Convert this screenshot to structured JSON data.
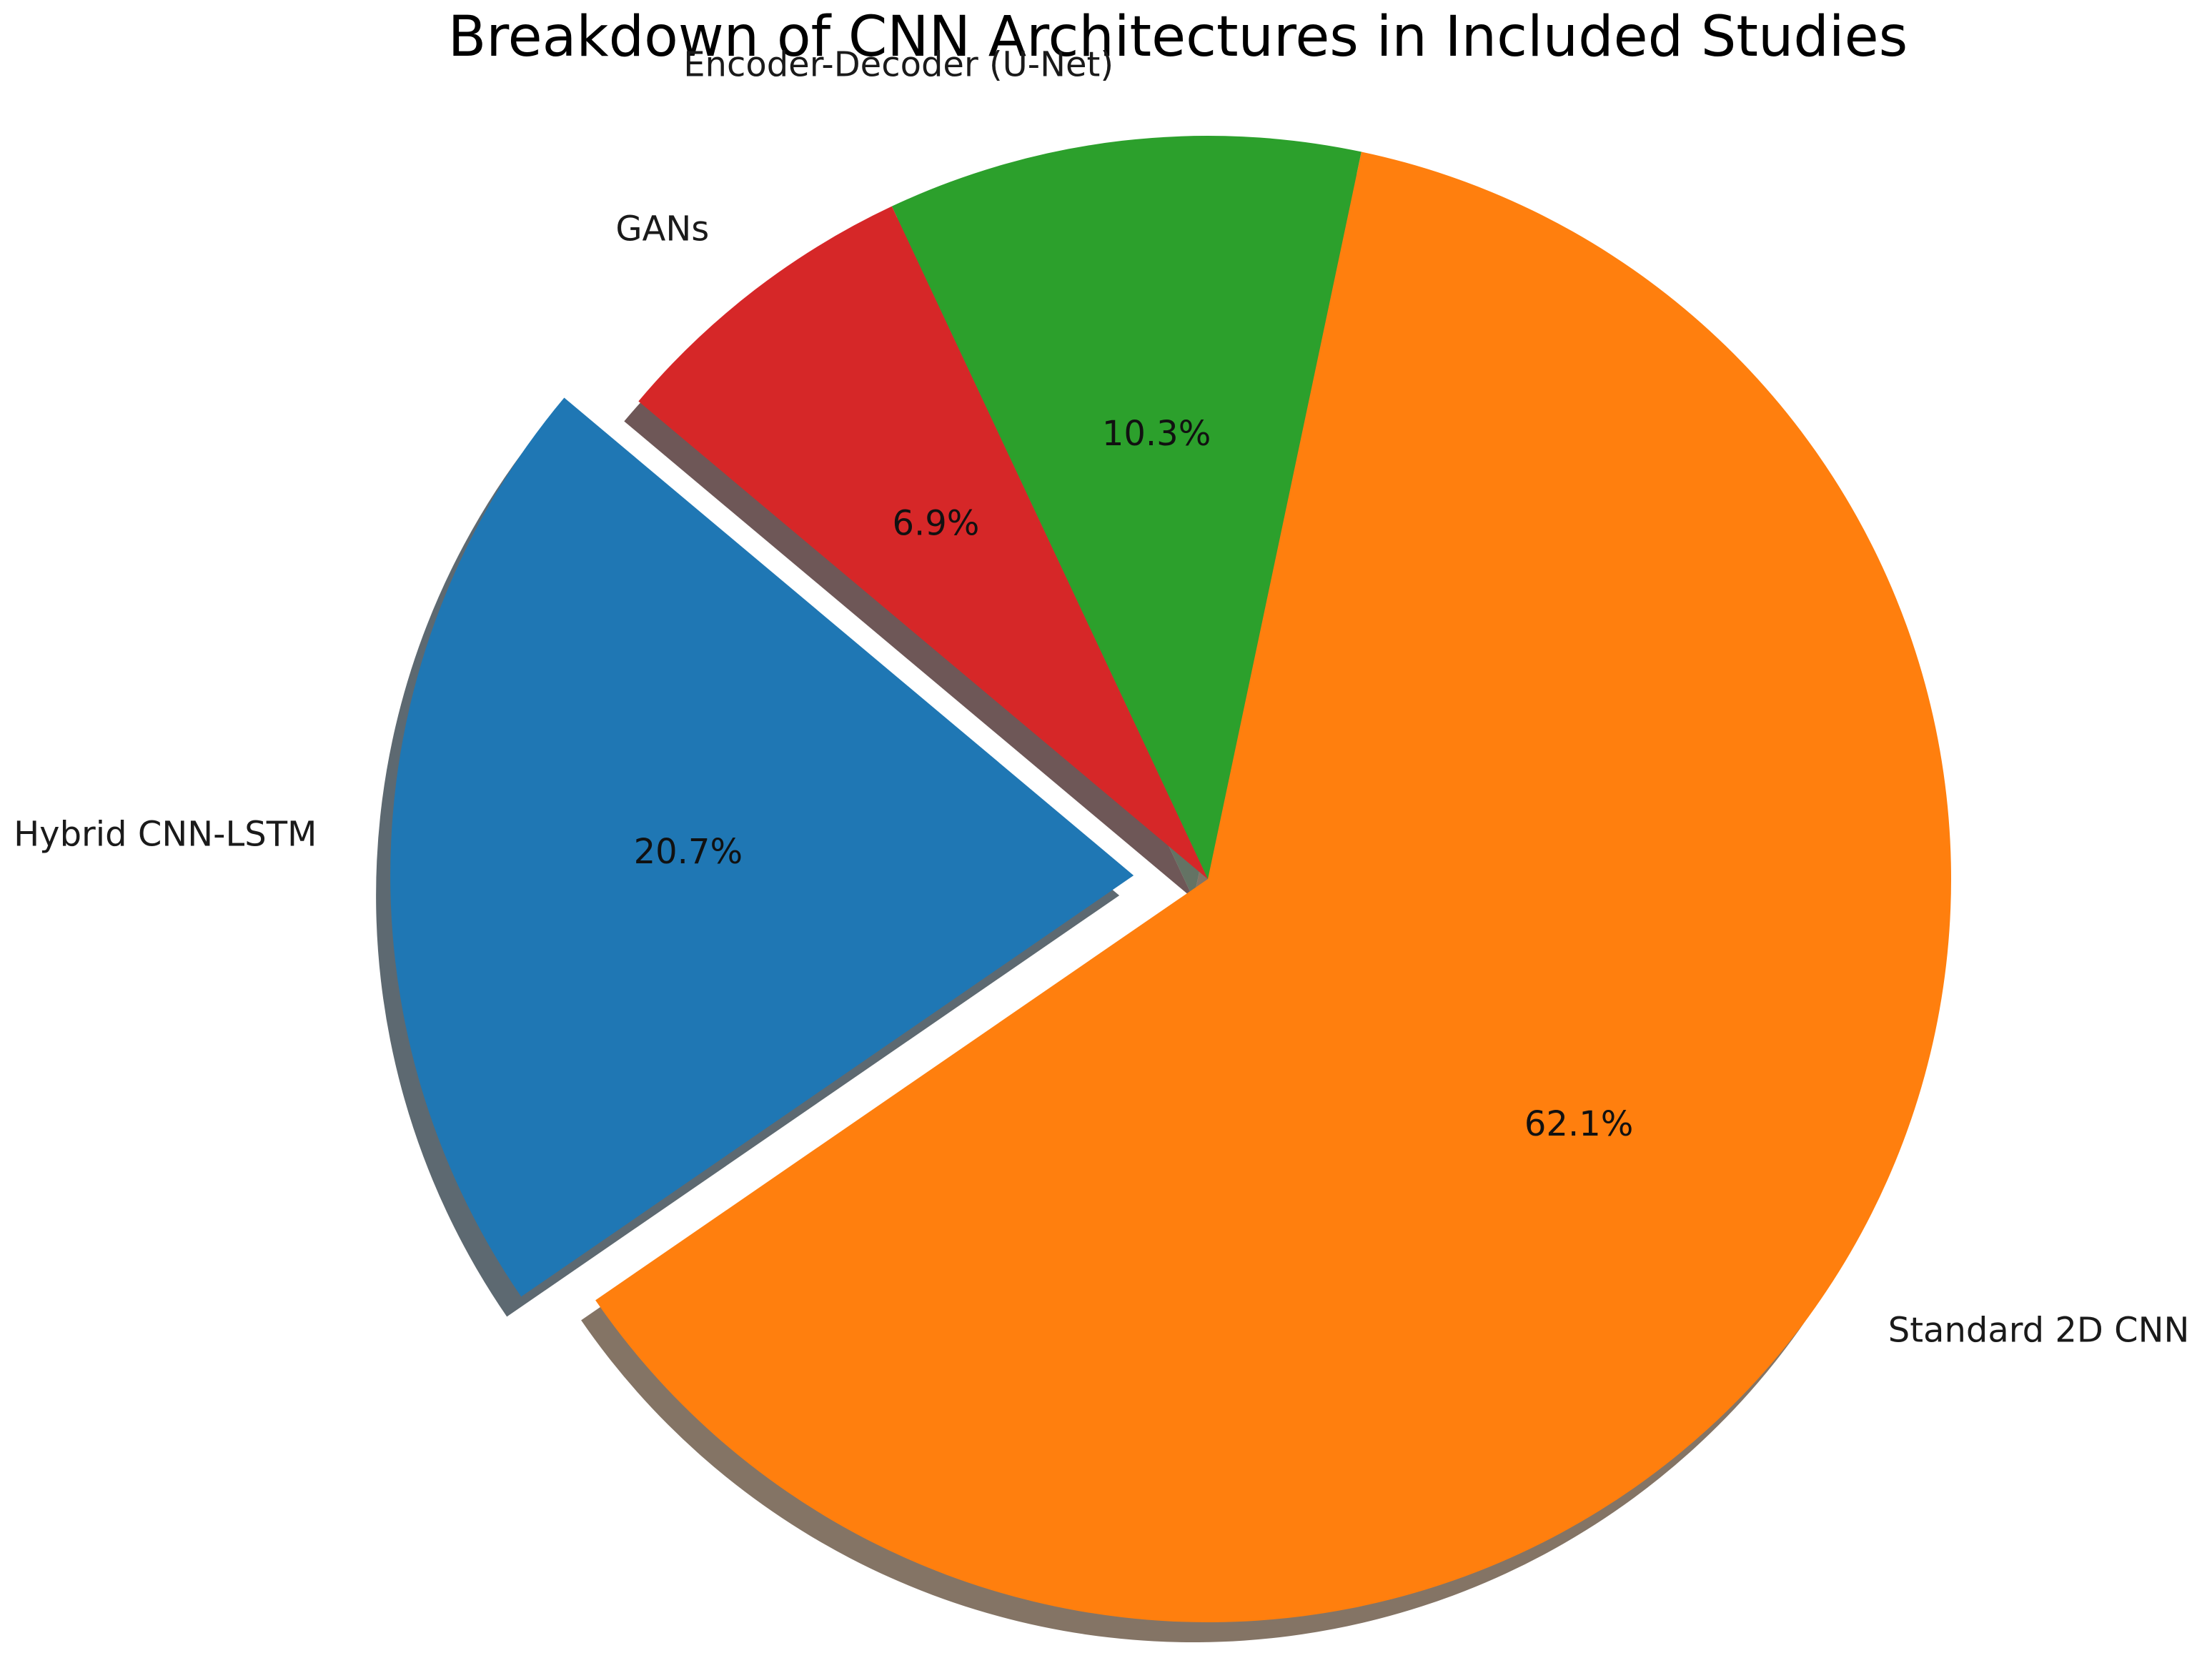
{
  "chart_data": {
    "type": "pie",
    "title": "Breakdown of CNN Architectures in Included Studies",
    "start_angle_deg": 140,
    "counterclockwise": true,
    "shadow": true,
    "slices": [
      {
        "label": "Hybrid CNN-LSTM",
        "value": 20.7,
        "pct_label": "20.7%",
        "color": "#1f77b4",
        "explode": 0.1
      },
      {
        "label": "Standard 2D CNN",
        "value": 62.1,
        "pct_label": "62.1%",
        "color": "#ff7f0e",
        "explode": 0
      },
      {
        "label": "Encoder-Decoder (U-Net)",
        "value": 10.3,
        "pct_label": "10.3%",
        "color": "#2ca02c",
        "explode": 0
      },
      {
        "label": "GANs",
        "value": 6.9,
        "pct_label": "6.9%",
        "color": "#d62728",
        "explode": 0
      }
    ]
  }
}
